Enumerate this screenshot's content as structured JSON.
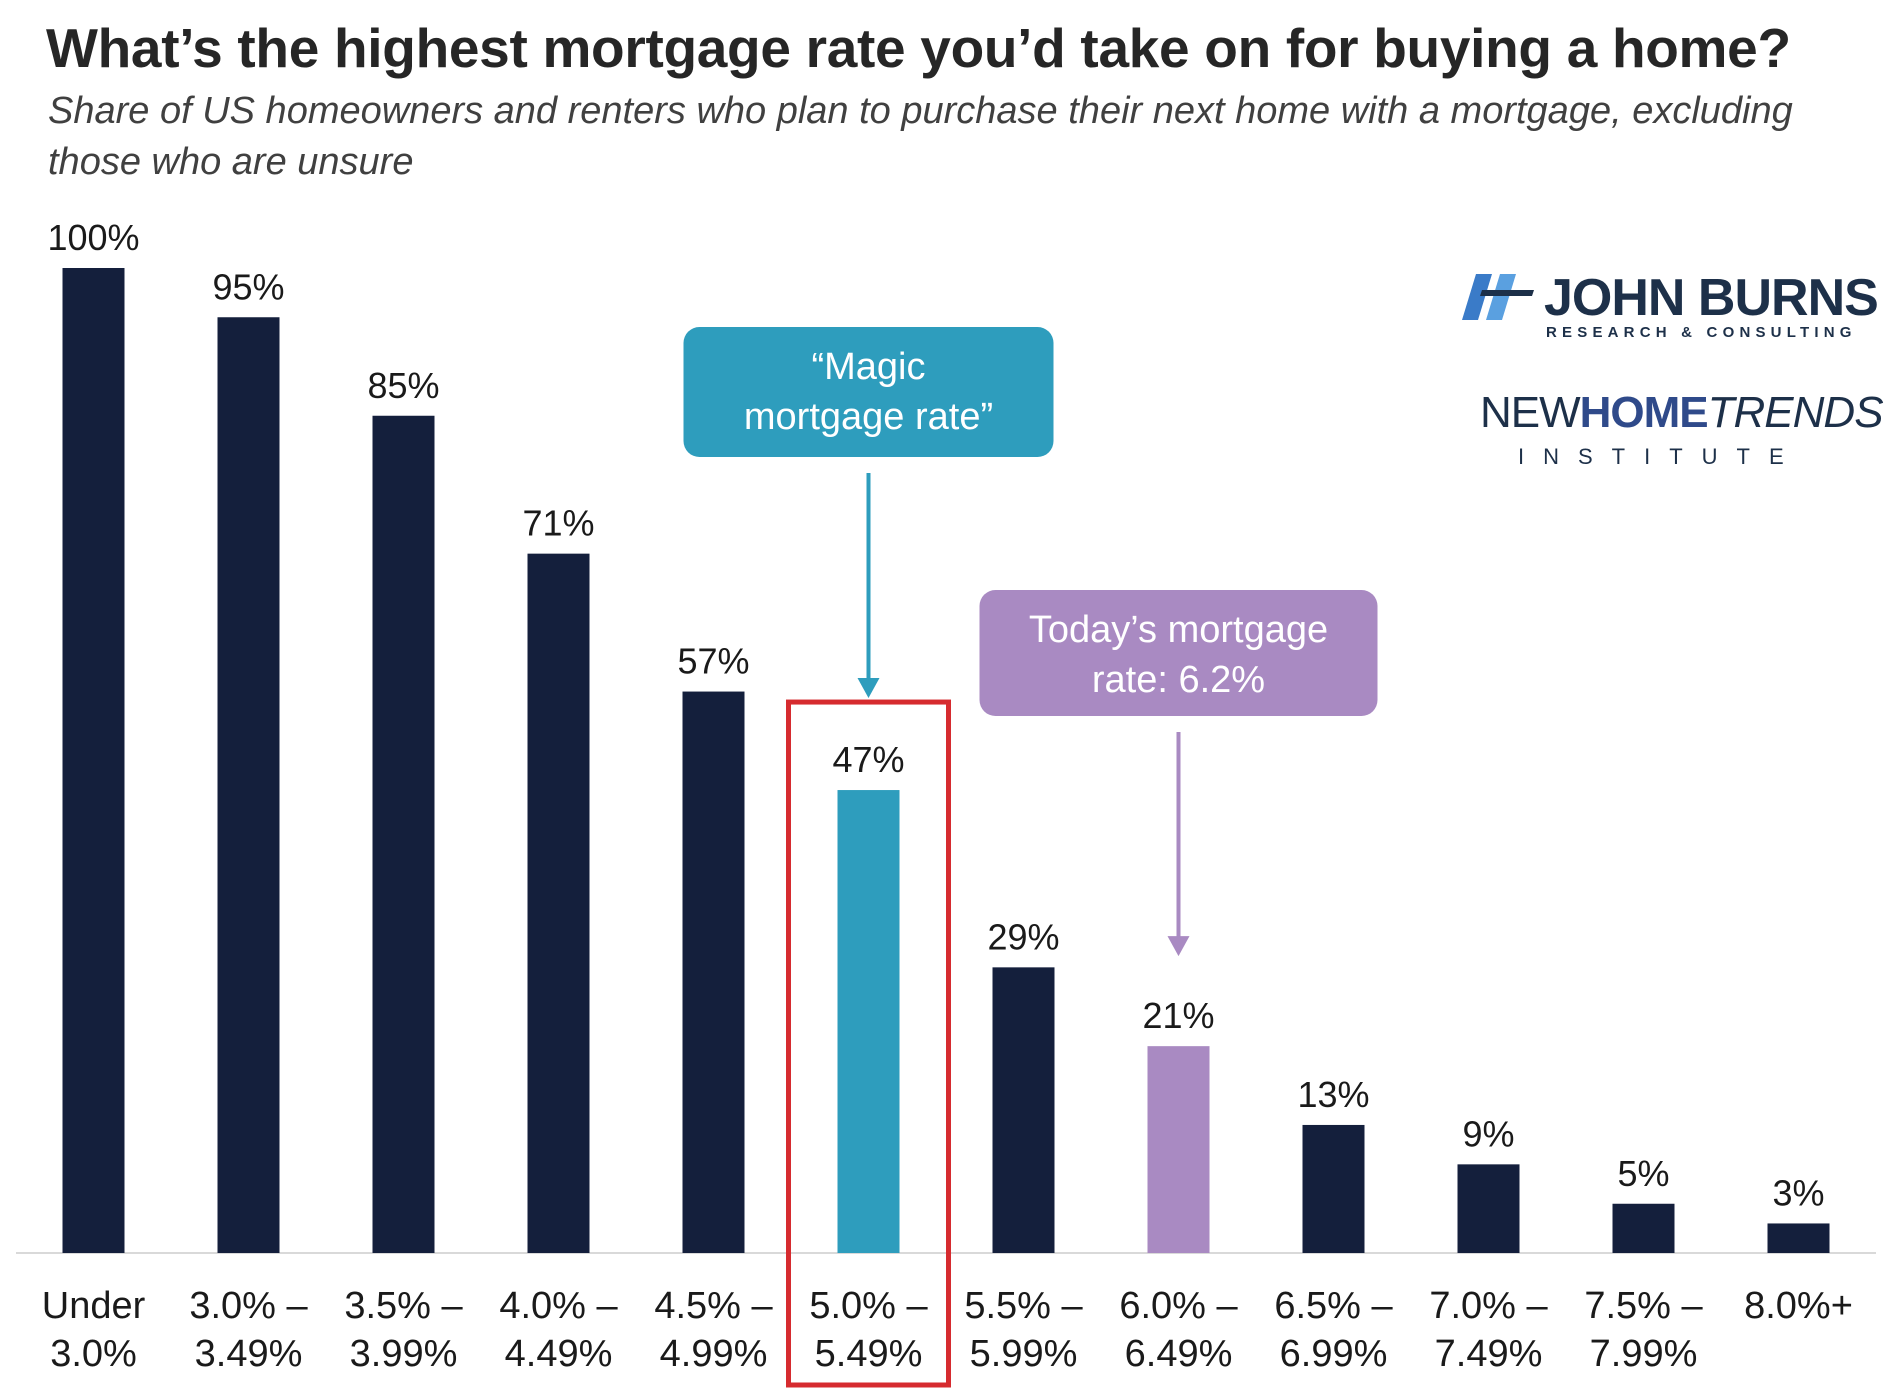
{
  "chart_data": {
    "type": "bar",
    "title": "What’s the highest mortgage rate you’d take on for buying a home?",
    "subtitle": "Share of US homeowners and renters who plan to purchase their next home with a mortgage, excluding those who are unsure",
    "categories": [
      [
        "Under",
        "3.0%"
      ],
      [
        "3.0% –",
        "3.49%"
      ],
      [
        "3.5% –",
        "3.99%"
      ],
      [
        "4.0% –",
        "4.49%"
      ],
      [
        "4.5% –",
        "4.99%"
      ],
      [
        "5.0% –",
        "5.49%"
      ],
      [
        "5.5% –",
        "5.99%"
      ],
      [
        "6.0% –",
        "6.49%"
      ],
      [
        "6.5% –",
        "6.99%"
      ],
      [
        "7.0% –",
        "7.49%"
      ],
      [
        "7.5% –",
        "7.99%"
      ],
      [
        "8.0%+",
        ""
      ]
    ],
    "values": [
      100,
      95,
      85,
      71,
      57,
      47,
      29,
      21,
      13,
      9,
      5,
      3
    ],
    "value_labels": [
      "100%",
      "95%",
      "85%",
      "71%",
      "57%",
      "47%",
      "29%",
      "21%",
      "13%",
      "9%",
      "5%",
      "3%"
    ],
    "ylim": [
      0,
      100
    ],
    "xlabel": "",
    "ylabel": "",
    "grid": false,
    "highlights": [
      {
        "index": 5,
        "color": "#2e9dbd",
        "outlined": true,
        "outline_color": "#d62b2f"
      },
      {
        "index": 7,
        "color": "#a98ac2"
      }
    ],
    "annotations": [
      {
        "text": "“Magic mortgage rate”",
        "lines": [
          "“Magic",
          "mortgage rate”"
        ],
        "target_index": 5,
        "color": "#2e9dbd"
      },
      {
        "text": "Today’s mortgage rate: 6.2%",
        "lines": [
          "Today’s mortgage",
          "rate: 6.2%"
        ],
        "target_index": 7,
        "color": "#a98ac2"
      }
    ],
    "colors": {
      "default_bar": "#141f3c",
      "axis": "#d9d9d9"
    }
  },
  "logos": {
    "john_burns": {
      "name": "JOHN BURNS",
      "sub": "RESEARCH & CONSULTING"
    },
    "nht": {
      "new": "NEW",
      "home": "HOME",
      "trends": "TRENDS",
      "sub": "INSTITUTE"
    }
  }
}
